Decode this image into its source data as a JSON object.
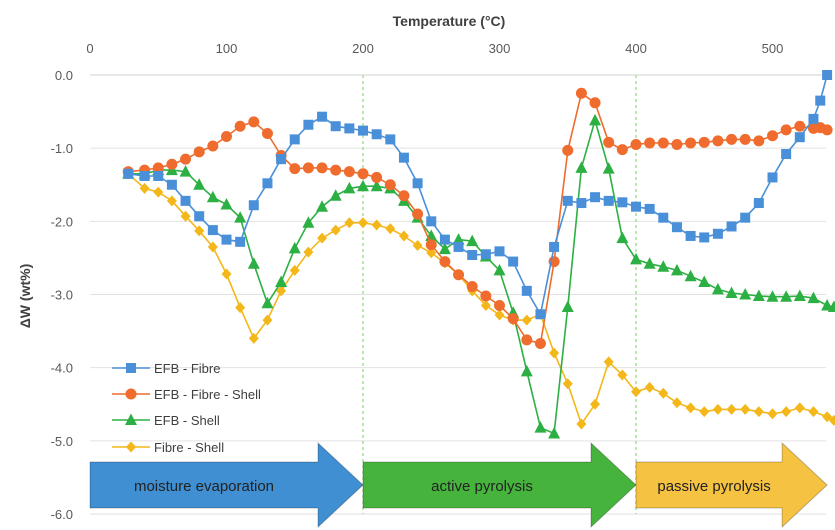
{
  "chart_data": {
    "type": "line",
    "xlabel": "Temperature (°C)",
    "ylabel": "ΔW (wt%)",
    "xlim": [
      0,
      540
    ],
    "ylim": [
      -6,
      0
    ],
    "x_ticks": [
      0,
      100,
      200,
      300,
      400,
      500
    ],
    "x_tick_labels": [
      "0",
      "100",
      "200",
      "300",
      "400",
      "500"
    ],
    "y_ticks": [
      0,
      -1,
      -2,
      -3,
      -4,
      -5,
      -6
    ],
    "y_tick_labels": [
      "0.0",
      "-1.0",
      "-2.0",
      "-3.0",
      "-4.0",
      "-5.0",
      "-6.0"
    ],
    "x_axis_position": "top",
    "vertical_markers": [
      200,
      400
    ],
    "legend_position": "left",
    "series": [
      {
        "name": "EFB - Fibre",
        "color": "#4a90d9",
        "marker": "square",
        "points": [
          [
            28,
            -1.35
          ],
          [
            40,
            -1.38
          ],
          [
            50,
            -1.38
          ],
          [
            60,
            -1.5
          ],
          [
            70,
            -1.72
          ],
          [
            80,
            -1.93
          ],
          [
            90,
            -2.12
          ],
          [
            100,
            -2.25
          ],
          [
            110,
            -2.28
          ],
          [
            120,
            -1.78
          ],
          [
            130,
            -1.48
          ],
          [
            140,
            -1.15
          ],
          [
            150,
            -0.88
          ],
          [
            160,
            -0.68
          ],
          [
            170,
            -0.57
          ],
          [
            180,
            -0.7
          ],
          [
            190,
            -0.73
          ],
          [
            200,
            -0.76
          ],
          [
            210,
            -0.81
          ],
          [
            220,
            -0.88
          ],
          [
            230,
            -1.13
          ],
          [
            240,
            -1.48
          ],
          [
            250,
            -2.0
          ],
          [
            260,
            -2.25
          ],
          [
            270,
            -2.35
          ],
          [
            280,
            -2.46
          ],
          [
            290,
            -2.45
          ],
          [
            300,
            -2.41
          ],
          [
            310,
            -2.55
          ],
          [
            320,
            -2.95
          ],
          [
            330,
            -3.27
          ],
          [
            340,
            -2.35
          ],
          [
            350,
            -1.72
          ],
          [
            360,
            -1.75
          ],
          [
            370,
            -1.67
          ],
          [
            380,
            -1.72
          ],
          [
            390,
            -1.74
          ],
          [
            400,
            -1.8
          ],
          [
            410,
            -1.83
          ],
          [
            420,
            -1.95
          ],
          [
            430,
            -2.08
          ],
          [
            440,
            -2.2
          ],
          [
            450,
            -2.22
          ],
          [
            460,
            -2.17
          ],
          [
            470,
            -2.07
          ],
          [
            480,
            -1.95
          ],
          [
            490,
            -1.75
          ],
          [
            500,
            -1.4
          ],
          [
            510,
            -1.08
          ],
          [
            520,
            -0.85
          ],
          [
            530,
            -0.6
          ],
          [
            535,
            -0.35
          ],
          [
            540,
            0.0
          ]
        ]
      },
      {
        "name": "EFB - Fibre - Shell",
        "color": "#ef6c2e",
        "marker": "circle",
        "points": [
          [
            28,
            -1.32
          ],
          [
            40,
            -1.3
          ],
          [
            50,
            -1.27
          ],
          [
            60,
            -1.22
          ],
          [
            70,
            -1.15
          ],
          [
            80,
            -1.05
          ],
          [
            90,
            -0.97
          ],
          [
            100,
            -0.84
          ],
          [
            110,
            -0.7
          ],
          [
            120,
            -0.64
          ],
          [
            130,
            -0.8
          ],
          [
            140,
            -1.1
          ],
          [
            150,
            -1.28
          ],
          [
            160,
            -1.27
          ],
          [
            170,
            -1.27
          ],
          [
            180,
            -1.3
          ],
          [
            190,
            -1.32
          ],
          [
            200,
            -1.35
          ],
          [
            210,
            -1.4
          ],
          [
            220,
            -1.5
          ],
          [
            230,
            -1.65
          ],
          [
            240,
            -1.9
          ],
          [
            250,
            -2.32
          ],
          [
            260,
            -2.55
          ],
          [
            270,
            -2.73
          ],
          [
            280,
            -2.89
          ],
          [
            290,
            -3.02
          ],
          [
            300,
            -3.15
          ],
          [
            310,
            -3.33
          ],
          [
            320,
            -3.62
          ],
          [
            330,
            -3.67
          ],
          [
            340,
            -2.55
          ],
          [
            350,
            -1.03
          ],
          [
            360,
            -0.25
          ],
          [
            370,
            -0.38
          ],
          [
            380,
            -0.92
          ],
          [
            390,
            -1.02
          ],
          [
            400,
            -0.95
          ],
          [
            410,
            -0.93
          ],
          [
            420,
            -0.93
          ],
          [
            430,
            -0.95
          ],
          [
            440,
            -0.93
          ],
          [
            450,
            -0.92
          ],
          [
            460,
            -0.9
          ],
          [
            470,
            -0.88
          ],
          [
            480,
            -0.88
          ],
          [
            490,
            -0.9
          ],
          [
            500,
            -0.83
          ],
          [
            510,
            -0.75
          ],
          [
            520,
            -0.7
          ],
          [
            530,
            -0.73
          ],
          [
            535,
            -0.72
          ],
          [
            540,
            -0.75
          ]
        ]
      },
      {
        "name": "EFB - Shell",
        "color": "#2db043",
        "marker": "triangle",
        "points": [
          [
            28,
            -1.35
          ],
          [
            40,
            -1.35
          ],
          [
            50,
            -1.3
          ],
          [
            60,
            -1.3
          ],
          [
            70,
            -1.32
          ],
          [
            80,
            -1.5
          ],
          [
            90,
            -1.67
          ],
          [
            100,
            -1.77
          ],
          [
            110,
            -1.95
          ],
          [
            120,
            -2.58
          ],
          [
            130,
            -3.12
          ],
          [
            140,
            -2.83
          ],
          [
            150,
            -2.37
          ],
          [
            160,
            -2.02
          ],
          [
            170,
            -1.8
          ],
          [
            180,
            -1.65
          ],
          [
            190,
            -1.55
          ],
          [
            200,
            -1.52
          ],
          [
            210,
            -1.52
          ],
          [
            220,
            -1.55
          ],
          [
            230,
            -1.72
          ],
          [
            240,
            -1.95
          ],
          [
            250,
            -2.2
          ],
          [
            260,
            -2.38
          ],
          [
            270,
            -2.25
          ],
          [
            280,
            -2.27
          ],
          [
            290,
            -2.48
          ],
          [
            300,
            -2.67
          ],
          [
            310,
            -3.25
          ],
          [
            320,
            -4.05
          ],
          [
            330,
            -4.82
          ],
          [
            340,
            -4.9
          ],
          [
            350,
            -3.17
          ],
          [
            360,
            -1.27
          ],
          [
            370,
            -0.62
          ],
          [
            380,
            -1.28
          ],
          [
            390,
            -2.23
          ],
          [
            400,
            -2.52
          ],
          [
            410,
            -2.58
          ],
          [
            420,
            -2.62
          ],
          [
            430,
            -2.67
          ],
          [
            440,
            -2.75
          ],
          [
            450,
            -2.83
          ],
          [
            460,
            -2.93
          ],
          [
            470,
            -2.98
          ],
          [
            480,
            -3.0
          ],
          [
            490,
            -3.02
          ],
          [
            500,
            -3.03
          ],
          [
            510,
            -3.03
          ],
          [
            520,
            -3.02
          ],
          [
            530,
            -3.05
          ],
          [
            540,
            -3.15
          ],
          [
            545,
            -3.17
          ]
        ]
      },
      {
        "name": "Fibre - Shell",
        "color": "#f4b71a",
        "marker": "diamond",
        "points": [
          [
            28,
            -1.35
          ],
          [
            40,
            -1.55
          ],
          [
            50,
            -1.6
          ],
          [
            60,
            -1.72
          ],
          [
            70,
            -1.93
          ],
          [
            80,
            -2.13
          ],
          [
            90,
            -2.35
          ],
          [
            100,
            -2.72
          ],
          [
            110,
            -3.18
          ],
          [
            120,
            -3.6
          ],
          [
            130,
            -3.35
          ],
          [
            140,
            -2.95
          ],
          [
            150,
            -2.67
          ],
          [
            160,
            -2.42
          ],
          [
            170,
            -2.23
          ],
          [
            180,
            -2.12
          ],
          [
            190,
            -2.02
          ],
          [
            200,
            -2.02
          ],
          [
            210,
            -2.05
          ],
          [
            220,
            -2.1
          ],
          [
            230,
            -2.2
          ],
          [
            240,
            -2.33
          ],
          [
            250,
            -2.43
          ],
          [
            260,
            -2.57
          ],
          [
            270,
            -2.73
          ],
          [
            280,
            -2.95
          ],
          [
            290,
            -3.15
          ],
          [
            300,
            -3.28
          ],
          [
            310,
            -3.35
          ],
          [
            320,
            -3.35
          ],
          [
            330,
            -3.27
          ],
          [
            340,
            -3.8
          ],
          [
            350,
            -4.22
          ],
          [
            360,
            -4.77
          ],
          [
            370,
            -4.5
          ],
          [
            380,
            -3.92
          ],
          [
            390,
            -4.1
          ],
          [
            400,
            -4.33
          ],
          [
            410,
            -4.27
          ],
          [
            420,
            -4.35
          ],
          [
            430,
            -4.48
          ],
          [
            440,
            -4.55
          ],
          [
            450,
            -4.6
          ],
          [
            460,
            -4.57
          ],
          [
            470,
            -4.57
          ],
          [
            480,
            -4.57
          ],
          [
            490,
            -4.6
          ],
          [
            500,
            -4.63
          ],
          [
            510,
            -4.6
          ],
          [
            520,
            -4.55
          ],
          [
            530,
            -4.6
          ],
          [
            540,
            -4.67
          ],
          [
            545,
            -4.72
          ],
          [
            550,
            -4.65
          ]
        ]
      }
    ],
    "stages": [
      {
        "label": "moisture evaporation",
        "x_start": 0,
        "x_end": 200,
        "color": "#3f8fd2"
      },
      {
        "label": "active pyrolysis",
        "x_start": 200,
        "x_end": 400,
        "color": "#46b43c"
      },
      {
        "label": "passive pyrolysis",
        "x_start": 400,
        "x_end": 540,
        "color": "#f5c242"
      }
    ]
  }
}
